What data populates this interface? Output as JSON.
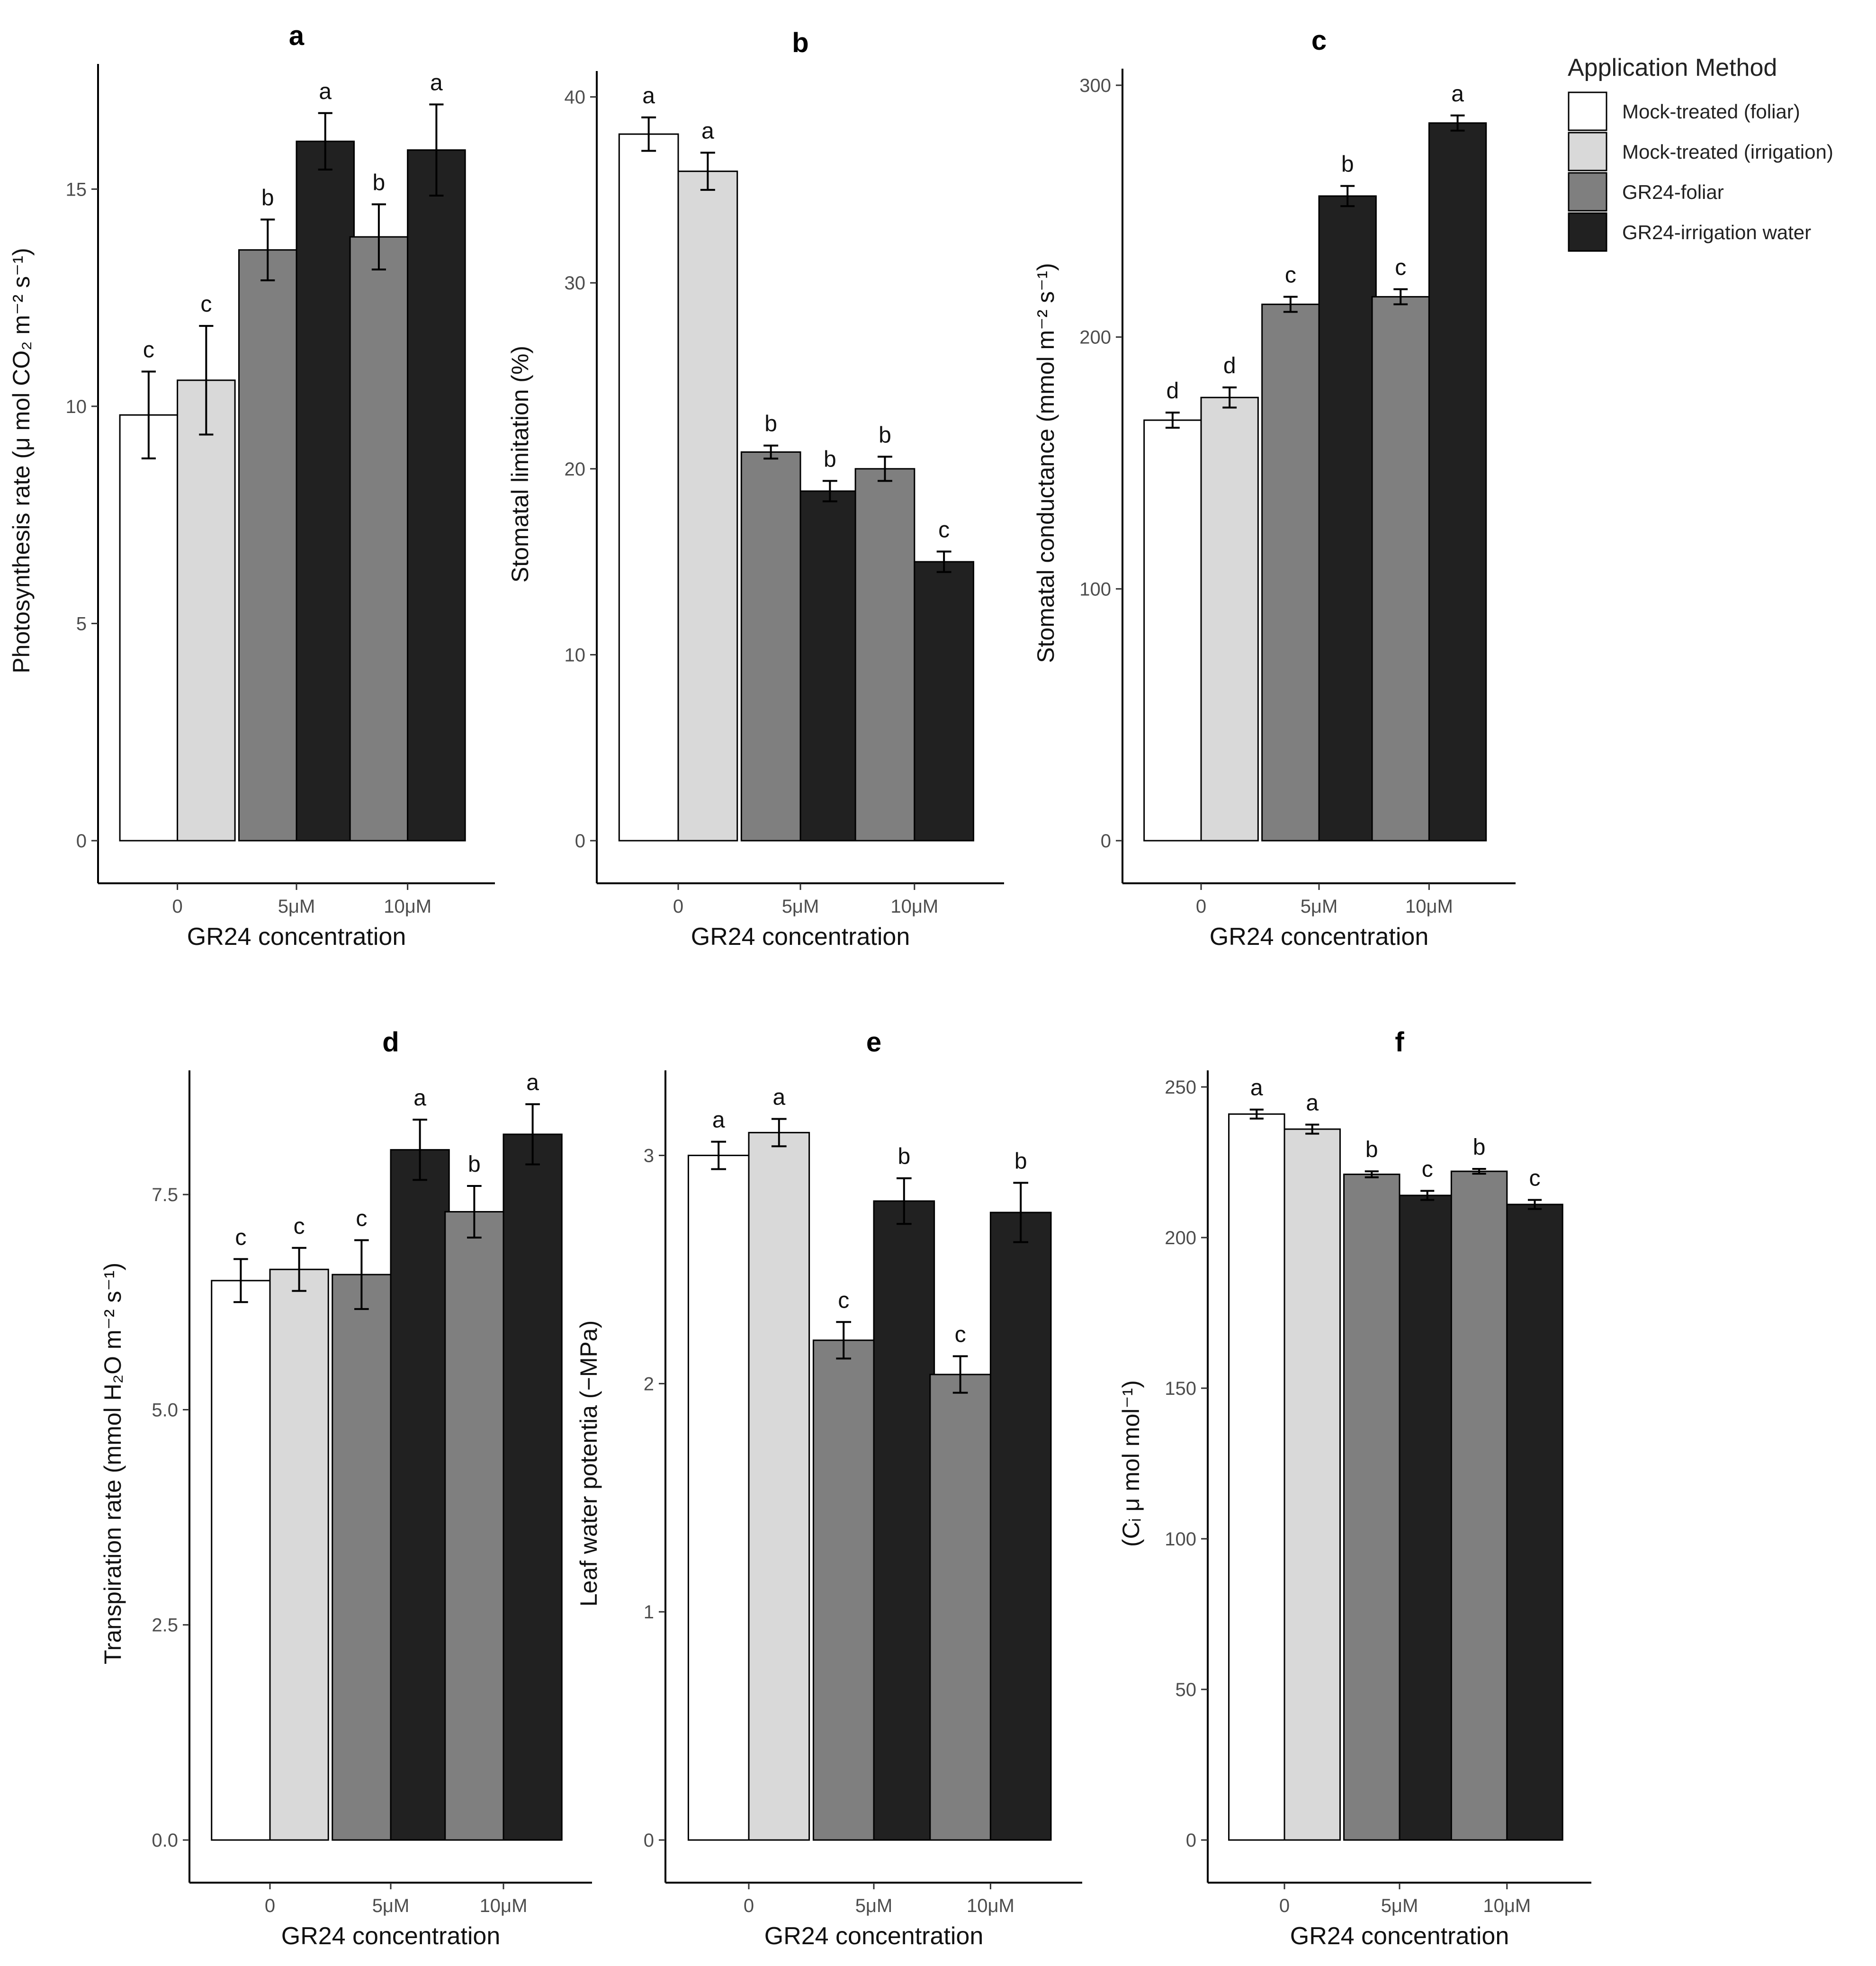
{
  "legend": {
    "title": "Application Method",
    "entries": [
      {
        "label": "Mock-treated (foliar)",
        "color": "#ffffff"
      },
      {
        "label": "Mock-treated (irrigation)",
        "color": "#d9d9d9"
      },
      {
        "label": "GR24-foliar",
        "color": "#7f7f7f"
      },
      {
        "label": "GR24-irrigation water",
        "color": "#212121"
      }
    ]
  },
  "chart_data": [
    {
      "panel": "a",
      "type": "bar",
      "title": "a",
      "xlabel": "GR24 concentration",
      "ylabel": "Photosynthesis rate (μ mol CO₂ m⁻² s⁻¹)",
      "ylim": [
        0,
        17.5
      ],
      "yticks": [
        0,
        5,
        10,
        15
      ],
      "ytick_labels": [
        "0",
        "5",
        "10",
        "15"
      ],
      "groups": [
        {
          "label": "0",
          "bars": [
            {
              "series": 0,
              "value": 9.8,
              "err": 1.0,
              "letter": "c"
            },
            {
              "series": 1,
              "value": 10.6,
              "err": 1.25,
              "letter": "c"
            }
          ]
        },
        {
          "label": "5μM",
          "bars": [
            {
              "series": 2,
              "value": 13.6,
              "err": 0.7,
              "letter": "b"
            },
            {
              "series": 3,
              "value": 16.1,
              "err": 0.65,
              "letter": "a"
            }
          ]
        },
        {
          "label": "10μM",
          "bars": [
            {
              "series": 2,
              "value": 13.9,
              "err": 0.75,
              "letter": "b"
            },
            {
              "series": 3,
              "value": 15.9,
              "err": 1.05,
              "letter": "a"
            }
          ]
        }
      ]
    },
    {
      "panel": "b",
      "type": "bar",
      "title": "b",
      "xlabel": "GR24 concentration",
      "ylabel": "Stomatal limitation (%)",
      "ylim": [
        0,
        40.5
      ],
      "yticks": [
        0,
        10,
        20,
        30,
        40
      ],
      "ytick_labels": [
        "0",
        "10",
        "20",
        "30",
        "40"
      ],
      "groups": [
        {
          "label": "0",
          "bars": [
            {
              "series": 0,
              "value": 38.0,
              "err": 0.9,
              "letter": "a"
            },
            {
              "series": 1,
              "value": 36.0,
              "err": 1.0,
              "letter": "a"
            }
          ]
        },
        {
          "label": "5μM",
          "bars": [
            {
              "series": 2,
              "value": 20.9,
              "err": 0.35,
              "letter": "b"
            },
            {
              "series": 3,
              "value": 18.8,
              "err": 0.55,
              "letter": "b"
            }
          ]
        },
        {
          "label": "10μM",
          "bars": [
            {
              "series": 2,
              "value": 20.0,
              "err": 0.65,
              "letter": "b"
            },
            {
              "series": 3,
              "value": 15.0,
              "err": 0.55,
              "letter": "c"
            }
          ]
        }
      ]
    },
    {
      "panel": "c",
      "type": "bar",
      "title": "c",
      "xlabel": "GR24 concentration",
      "ylabel": "Stomatal conductance (mmol m⁻² s⁻¹)",
      "ylim": [
        0,
        300
      ],
      "yticks": [
        0,
        100,
        200,
        300
      ],
      "ytick_labels": [
        "0",
        "100",
        "200",
        "300"
      ],
      "groups": [
        {
          "label": "0",
          "bars": [
            {
              "series": 0,
              "value": 167,
              "err": 3,
              "letter": "d"
            },
            {
              "series": 1,
              "value": 176,
              "err": 4,
              "letter": "d"
            }
          ]
        },
        {
          "label": "5μM",
          "bars": [
            {
              "series": 2,
              "value": 213,
              "err": 3,
              "letter": "c"
            },
            {
              "series": 3,
              "value": 256,
              "err": 4,
              "letter": "b"
            }
          ]
        },
        {
          "label": "10μM",
          "bars": [
            {
              "series": 2,
              "value": 216,
              "err": 3,
              "letter": "c"
            },
            {
              "series": 3,
              "value": 285,
              "err": 3,
              "letter": "a"
            }
          ]
        }
      ]
    },
    {
      "panel": "d",
      "type": "bar",
      "title": "d",
      "xlabel": "GR24 concentration",
      "ylabel": "Transpiration rate (mmol H₂O m⁻² s⁻¹)",
      "ylim": [
        0,
        8.75
      ],
      "yticks": [
        0,
        2.5,
        5,
        7.5
      ],
      "ytick_labels": [
        "0.0",
        "2.5",
        "5.0",
        "7.5"
      ],
      "groups": [
        {
          "label": "0",
          "bars": [
            {
              "series": 0,
              "value": 6.5,
              "err": 0.25,
              "letter": "c"
            },
            {
              "series": 1,
              "value": 6.63,
              "err": 0.25,
              "letter": "c"
            }
          ]
        },
        {
          "label": "5μM",
          "bars": [
            {
              "series": 2,
              "value": 6.57,
              "err": 0.4,
              "letter": "c"
            },
            {
              "series": 3,
              "value": 8.02,
              "err": 0.35,
              "letter": "a"
            }
          ]
        },
        {
          "label": "10μM",
          "bars": [
            {
              "series": 2,
              "value": 7.3,
              "err": 0.3,
              "letter": "b"
            },
            {
              "series": 3,
              "value": 8.2,
              "err": 0.35,
              "letter": "a"
            }
          ]
        }
      ]
    },
    {
      "panel": "e",
      "type": "bar",
      "title": "e",
      "xlabel": "GR24 concentration",
      "ylabel": "Leaf water potentia (−MPa)",
      "ylim": [
        0,
        3.3
      ],
      "yticks": [
        0,
        1,
        2,
        3
      ],
      "ytick_labels": [
        "0",
        "1",
        "2",
        "3"
      ],
      "groups": [
        {
          "label": "0",
          "bars": [
            {
              "series": 0,
              "value": 3.0,
              "err": 0.06,
              "letter": "a"
            },
            {
              "series": 1,
              "value": 3.1,
              "err": 0.06,
              "letter": "a"
            }
          ]
        },
        {
          "label": "5μM",
          "bars": [
            {
              "series": 2,
              "value": 2.19,
              "err": 0.08,
              "letter": "c"
            },
            {
              "series": 3,
              "value": 2.8,
              "err": 0.1,
              "letter": "b"
            }
          ]
        },
        {
          "label": "10μM",
          "bars": [
            {
              "series": 2,
              "value": 2.04,
              "err": 0.08,
              "letter": "c"
            },
            {
              "series": 3,
              "value": 2.75,
              "err": 0.13,
              "letter": "b"
            }
          ]
        }
      ]
    },
    {
      "panel": "f",
      "type": "bar",
      "title": "f",
      "xlabel": "GR24 concentration",
      "ylabel": "(Cᵢ μ mol mol⁻¹)",
      "ylim": [
        0,
        250
      ],
      "yticks": [
        0,
        50,
        100,
        150,
        200,
        250
      ],
      "ytick_labels": [
        "0",
        "50",
        "100",
        "150",
        "200",
        "250"
      ],
      "groups": [
        {
          "label": "0",
          "bars": [
            {
              "series": 0,
              "value": 241,
              "err": 1.5,
              "letter": "a"
            },
            {
              "series": 1,
              "value": 236,
              "err": 1.5,
              "letter": "a"
            }
          ]
        },
        {
          "label": "5μM",
          "bars": [
            {
              "series": 2,
              "value": 221,
              "err": 1,
              "letter": "b"
            },
            {
              "series": 3,
              "value": 214,
              "err": 1.5,
              "letter": "c"
            }
          ]
        },
        {
          "label": "10μM",
          "bars": [
            {
              "series": 2,
              "value": 222,
              "err": 0.8,
              "letter": "b"
            },
            {
              "series": 3,
              "value": 211,
              "err": 1.5,
              "letter": "c"
            }
          ]
        }
      ]
    }
  ]
}
